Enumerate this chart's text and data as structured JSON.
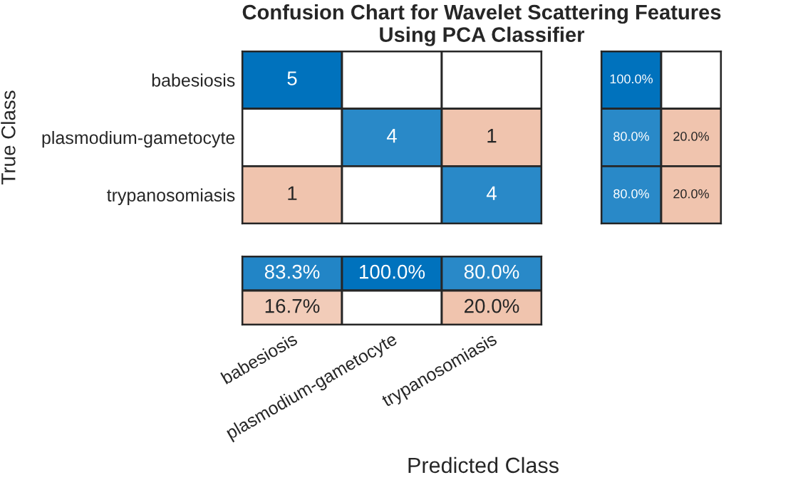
{
  "chart_data": [
    {
      "type": "heatmap",
      "title": "Confusion Chart for Wavelet Scattering Features\nUsing PCA Classifier",
      "ylabel": "True Class",
      "tick_labels": "y",
      "grid": false,
      "data_labels": true,
      "categories": [
        null,
        null,
        null
      ],
      "y_categories": [
        "babesiosis",
        "plasmodium-gametocyte",
        "trypanosomiasis"
      ],
      "cells": [
        [
          5,
          null,
          null
        ],
        [
          null,
          4,
          1
        ],
        [
          1,
          null,
          4
        ]
      ],
      "colors": [
        [
          "#0072bd",
          null,
          null
        ],
        [
          null,
          "#0072bd",
          "#f0c4ae"
        ],
        [
          "#f0c4ae",
          null,
          "#0072bd"
        ]
      ]
    },
    {
      "type": "heatmap",
      "tick_labels": false,
      "grid": false,
      "categories": [
        null,
        null
      ],
      "y_categories": [
        null,
        null,
        null
      ],
      "cells": [
        [
          100.0,
          null
        ],
        [
          80.0,
          20.0
        ],
        [
          80.0,
          20.0
        ]
      ],
      "cell_labels": [
        [
          "100.0%",
          null
        ],
        [
          "80.0%",
          "20.0%"
        ],
        [
          "80.0%",
          "20.0%"
        ]
      ],
      "colors": [
        [
          "#0072bd",
          null
        ],
        [
          "#0072bd",
          "#f0c4ae"
        ],
        [
          "#0072bd",
          "#f0c4ae"
        ]
      ]
    },
    {
      "type": "heatmap",
      "xlabel": "Predicted Class",
      "tick_labels": "x",
      "grid": false,
      "categories": [
        "babesiosis",
        "plasmodium-gametocyte",
        "trypanosomiasis"
      ],
      "y_categories": [
        null,
        null
      ],
      "cells": [
        [
          83.3,
          100.0,
          80.0
        ],
        [
          16.7,
          null,
          20.0
        ]
      ],
      "cell_labels": [
        [
          "83.3%",
          "100.0%",
          "80.0%"
        ],
        [
          "16.7%",
          null,
          "20.0%"
        ]
      ],
      "colors": [
        [
          "#0072bd",
          "#0072bd",
          "#0072bd"
        ],
        [
          "#f0c4ae",
          null,
          "#f0c4ae"
        ]
      ]
    }
  ]
}
